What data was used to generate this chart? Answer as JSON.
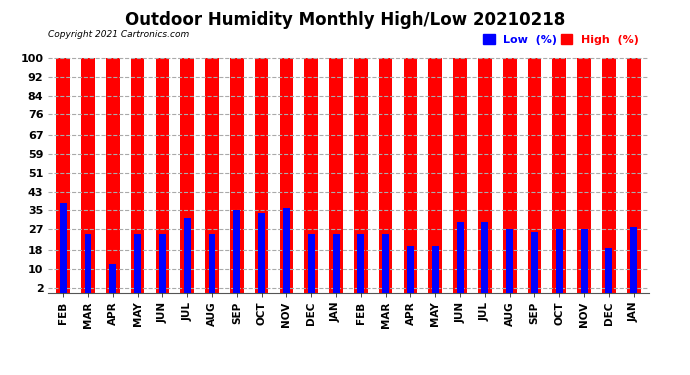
{
  "title": "Outdoor Humidity Monthly High/Low 20210218",
  "copyright": "Copyright 2021 Cartronics.com",
  "months": [
    "FEB",
    "MAR",
    "APR",
    "MAY",
    "JUN",
    "JUL",
    "AUG",
    "SEP",
    "OCT",
    "NOV",
    "DEC",
    "JAN",
    "FEB",
    "MAR",
    "APR",
    "MAY",
    "JUN",
    "JUL",
    "AUG",
    "SEP",
    "OCT",
    "NOV",
    "DEC",
    "JAN"
  ],
  "high_values": [
    100,
    100,
    100,
    100,
    100,
    100,
    100,
    100,
    100,
    100,
    100,
    100,
    100,
    100,
    100,
    100,
    100,
    100,
    100,
    100,
    100,
    100,
    100,
    100
  ],
  "low_values": [
    38,
    25,
    12,
    25,
    25,
    32,
    25,
    35,
    34,
    36,
    25,
    25,
    25,
    25,
    20,
    20,
    30,
    30,
    27,
    26,
    27,
    27,
    19,
    28
  ],
  "high_color": "#ff0000",
  "low_color": "#0000ff",
  "bg_color": "#ffffff",
  "yticks": [
    2,
    10,
    18,
    27,
    35,
    43,
    51,
    59,
    67,
    76,
    84,
    92,
    100
  ],
  "ylim": [
    0,
    104
  ],
  "title_fontsize": 12,
  "red_bar_width": 0.55,
  "blue_bar_width": 0.28
}
